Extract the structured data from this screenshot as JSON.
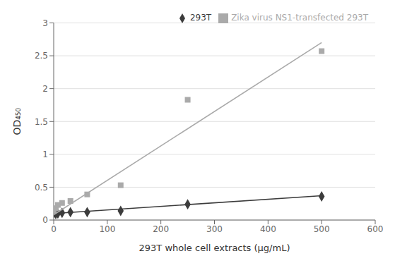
{
  "chart_data": {
    "type": "scatter",
    "xlabel": "293T whole cell extracts (μg/mL)",
    "ylabel": "OD₄₅₀",
    "xlim": [
      0,
      600
    ],
    "ylim": [
      0,
      3
    ],
    "xticks": [
      0,
      100,
      200,
      300,
      400,
      500,
      600
    ],
    "yticks": [
      0,
      0.5,
      1,
      1.5,
      2,
      2.5,
      3
    ],
    "grid": "y",
    "legend": "upper right",
    "series": [
      {
        "type": "line",
        "color": "#3c3c3c",
        "x": [
          0,
          500
        ],
        "values": [
          0.1,
          0.37
        ]
      },
      {
        "type": "scatter",
        "name": "293T",
        "color": "#3c3c3c",
        "marker": "diamond",
        "x": [
          0,
          3.9,
          7.8,
          15.6,
          31.25,
          62.5,
          125,
          250,
          500
        ],
        "values": [
          0.11,
          0.09,
          0.1,
          0.11,
          0.12,
          0.12,
          0.14,
          0.24,
          0.36
        ]
      },
      {
        "type": "line",
        "color": "#aaaaaa",
        "x": [
          0,
          500
        ],
        "values": [
          0.08,
          2.7
        ]
      },
      {
        "type": "scatter",
        "name": "Zika virus NS1-transfected 293T",
        "color": "#aaaaaa",
        "marker": "square",
        "x": [
          0,
          3.9,
          7.8,
          15.6,
          31.25,
          62.5,
          125,
          250,
          500
        ],
        "values": [
          0.14,
          0.18,
          0.23,
          0.26,
          0.29,
          0.39,
          0.53,
          1.83,
          2.57
        ]
      }
    ]
  }
}
